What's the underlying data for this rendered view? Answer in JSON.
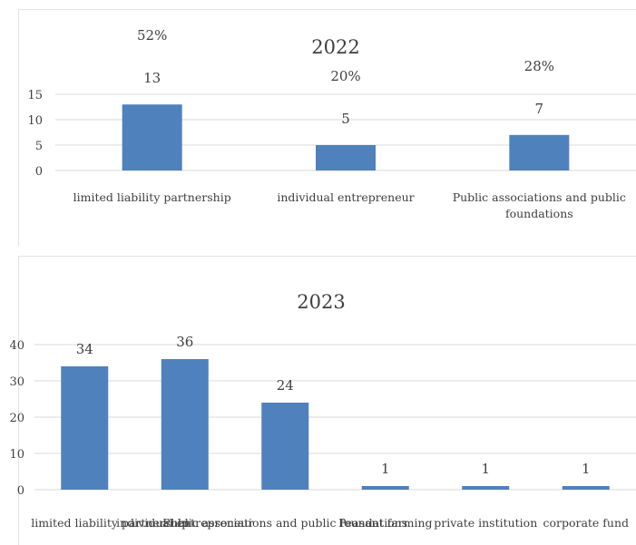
{
  "charts_meta": {
    "colors": {
      "bar": "#4f81bd",
      "grid": "#d9d9d9",
      "text": "#404040"
    }
  },
  "chart_data": [
    {
      "type": "bar",
      "title": "2022",
      "categories": [
        "limited liability partnership",
        "individual entrepreneur",
        "Public associations and public foundations"
      ],
      "values": [
        13,
        5,
        7
      ],
      "percent_labels": [
        "52%",
        "20%",
        "28%"
      ],
      "yticks": [
        0,
        5,
        10,
        15
      ],
      "ylim": [
        0,
        15
      ],
      "grid": true,
      "legend": "none"
    },
    {
      "type": "bar",
      "title": "2023",
      "categories": [
        "limited liability partnership",
        "individual entrepreneur",
        "Public associations and public foundations",
        "Peasant farming",
        "private institution",
        "corporate fund"
      ],
      "values": [
        34,
        36,
        24,
        1,
        1,
        1
      ],
      "yticks": [
        0,
        10,
        20,
        30,
        40
      ],
      "ylim": [
        0,
        40
      ],
      "grid": true,
      "legend": "none"
    }
  ]
}
